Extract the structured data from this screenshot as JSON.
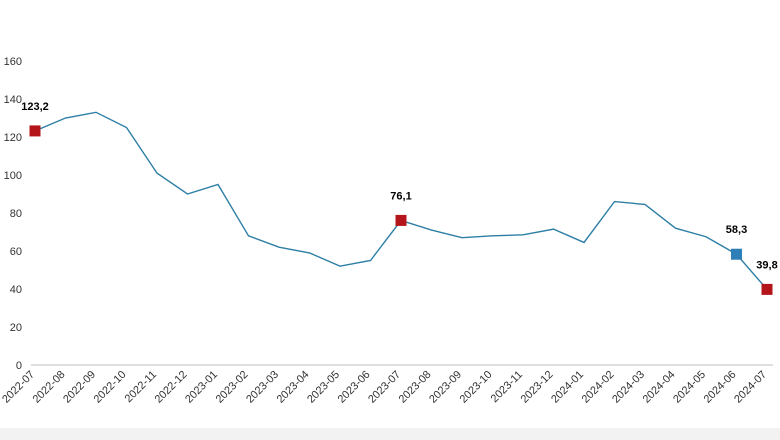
{
  "chart_data": {
    "type": "line",
    "title": "",
    "xlabel": "",
    "ylabel": "",
    "ylim": [
      0,
      160
    ],
    "yticks": [
      0,
      20,
      40,
      60,
      80,
      100,
      120,
      140,
      160
    ],
    "grid": false,
    "legend": "none",
    "categories": [
      "2022-07",
      "2022-08",
      "2022-09",
      "2022-10",
      "2022-11",
      "2022-12",
      "2023-01",
      "2023-02",
      "2023-03",
      "2023-04",
      "2023-05",
      "2023-06",
      "2023-07",
      "2023-08",
      "2023-09",
      "2023-10",
      "2023-11",
      "2023-12",
      "2024-01",
      "2024-02",
      "2024-03",
      "2024-04",
      "2024-05",
      "2024-06",
      "2024-07"
    ],
    "series": [
      {
        "color": "#2e7fa5",
        "values": [
          123.2,
          130,
          133,
          125,
          101,
          90,
          95,
          68,
          62,
          59,
          52,
          55,
          76.1,
          71,
          67,
          68,
          68.5,
          71.5,
          64.5,
          86,
          84.5,
          72,
          67.5,
          58.3,
          39.8
        ]
      }
    ],
    "highlights": [
      {
        "index": 0,
        "label": "123,2",
        "color": "#b3151b"
      },
      {
        "index": 12,
        "label": "76,1",
        "color": "#b3151b"
      },
      {
        "index": 23,
        "label": "58,3",
        "color": "#2e7fb8"
      },
      {
        "index": 24,
        "label": "39,8",
        "color": "#b3151b"
      }
    ]
  }
}
